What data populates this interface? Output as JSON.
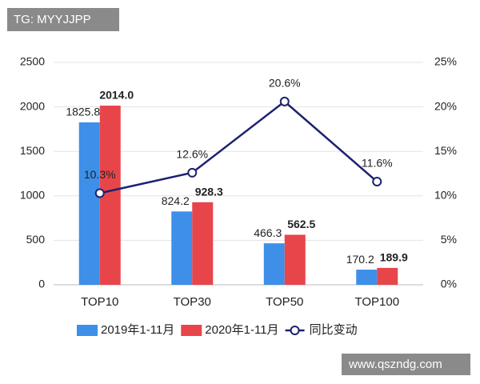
{
  "watermarks": [
    "TG: MYYJJPP",
    "www.qszndg.com"
  ],
  "chart_data": {
    "type": "bar",
    "categories": [
      "TOP10",
      "TOP30",
      "TOP50",
      "TOP100"
    ],
    "series": [
      {
        "name": "2019年1-11月",
        "color": "#3d8fe8",
        "values": [
          1825.8,
          824.2,
          466.3,
          170.2
        ],
        "value_labels": [
          "1825.8",
          "824.2",
          "466.3",
          "170.2"
        ]
      },
      {
        "name": "2020年1-11月",
        "color": "#e8454a",
        "values": [
          2014,
          928.3,
          562.5,
          189.9
        ],
        "value_labels": [
          "2014.0",
          "928.3",
          "562.5",
          "189.9"
        ]
      },
      {
        "name": "同比变动",
        "type": "line",
        "axis": "y2",
        "color": "#1c2170",
        "values": [
          10.3,
          12.6,
          20.6,
          11.6
        ],
        "value_labels": [
          "10.3%",
          "12.6%",
          "20.6%",
          "11.6%"
        ]
      }
    ],
    "ylim": [
      0,
      2500
    ],
    "yticks": [
      0,
      500,
      1000,
      1500,
      2000,
      2500
    ],
    "y2lim": [
      0,
      25
    ],
    "y2ticks": [
      {
        "value": 0,
        "label": "0%"
      },
      {
        "value": 5,
        "label": "5%"
      },
      {
        "value": 10,
        "label": "10%"
      },
      {
        "value": 15,
        "label": "15%"
      },
      {
        "value": 20,
        "label": "20%"
      },
      {
        "value": 25,
        "label": "25%"
      }
    ],
    "grid": true,
    "legend": "bottom"
  }
}
